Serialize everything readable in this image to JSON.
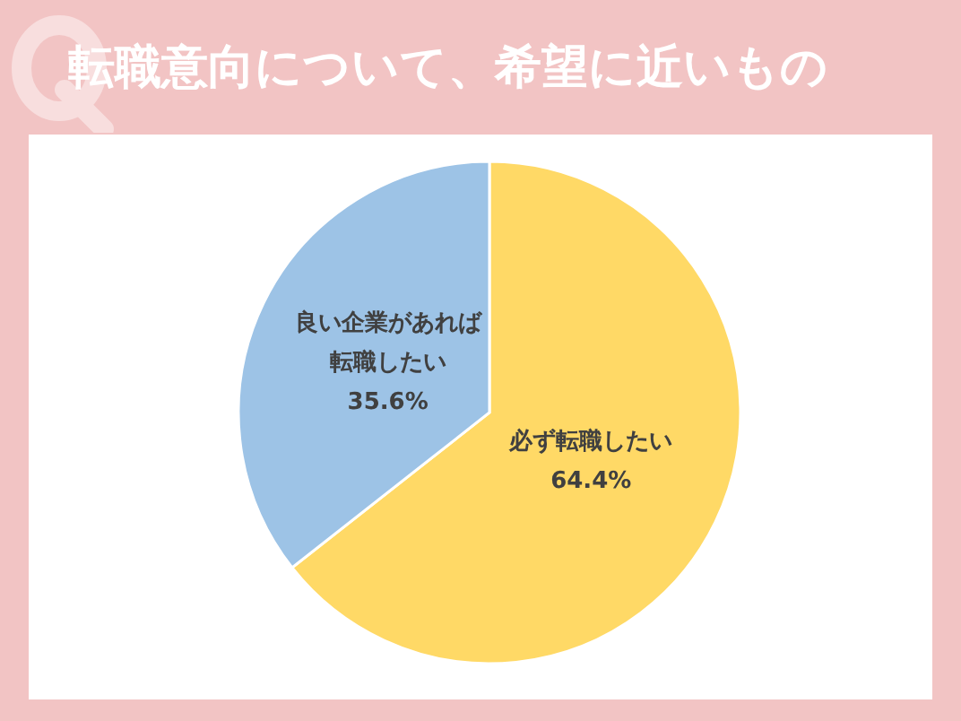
{
  "chart_data": {
    "type": "pie",
    "title": "転職意向について、希望に近いもの",
    "categories": [
      "必ず転職したい",
      "良い企業があれば転職したい"
    ],
    "values": [
      64.4,
      35.6
    ],
    "value_labels": [
      "64.4%",
      "35.6%"
    ],
    "colors": [
      "#ffd966",
      "#9dc3e6"
    ],
    "legend": false
  }
}
